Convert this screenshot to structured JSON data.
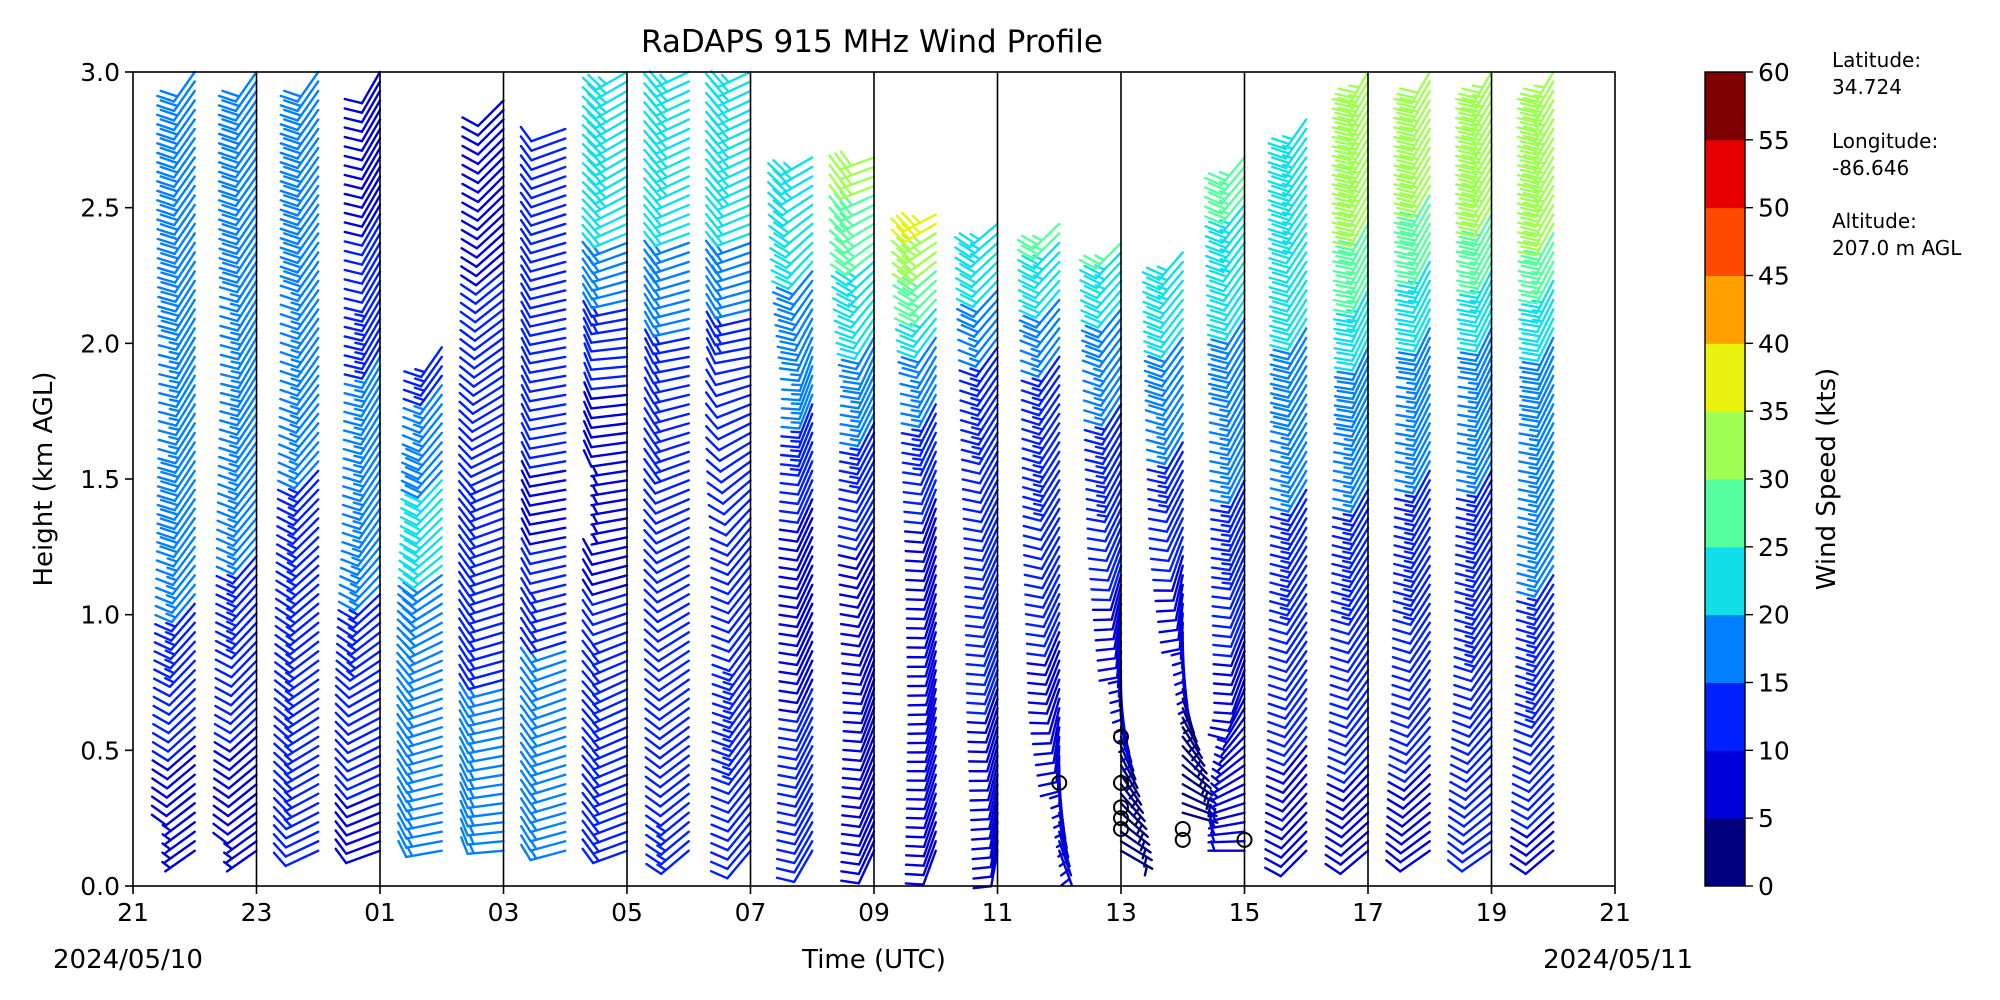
{
  "chart_data": {
    "type": "wind_barb_profile",
    "title": "RaDAPS 915 MHz Wind Profile",
    "xlabel": "Time (UTC)",
    "ylabel": "Height (km AGL)",
    "xlim": [
      21,
      45
    ],
    "ylim": [
      0,
      3.0
    ],
    "x_ticks": [
      21,
      23,
      25,
      27,
      29,
      31,
      33,
      35,
      37,
      39,
      41,
      43,
      45
    ],
    "x_tick_labels": [
      "21",
      "23",
      "01",
      "03",
      "05",
      "07",
      "09",
      "11",
      "13",
      "15",
      "17",
      "19",
      "21"
    ],
    "y_ticks": [
      0,
      0.5,
      1.0,
      1.5,
      2.0,
      2.5,
      3.0
    ],
    "y_tick_labels": [
      "0.0",
      "0.5",
      "1.0",
      "1.5",
      "2.0",
      "2.5",
      "3.0"
    ],
    "vertical_lines_at_hours": [
      23,
      25,
      27,
      29,
      31,
      33,
      35,
      37,
      39,
      41,
      43
    ],
    "date_left": "2024/05/10",
    "date_right": "2024/05/11",
    "colorbar": {
      "label": "Wind Speed (kts)",
      "ticks": [
        "0",
        "5",
        "10",
        "15",
        "20",
        "25",
        "30",
        "35",
        "40",
        "45",
        "50",
        "55",
        "60"
      ],
      "colors": [
        "#00007f",
        "#0000d9",
        "#0020ff",
        "#0080ff",
        "#10dfe8",
        "#55ff9f",
        "#9fff55",
        "#e8f20c",
        "#ffa000",
        "#ff4a00",
        "#e80000",
        "#7f0000"
      ]
    },
    "station": {
      "lat_label": "Latitude:",
      "lat": "34.724",
      "lon_label": "Longitude:",
      "lon": "-86.646",
      "alt_label": "Altitude:",
      "alt": "207.0 m AGL"
    },
    "profile_times": [
      22,
      23,
      24,
      25,
      26,
      27,
      28,
      29,
      30,
      31,
      32,
      33,
      34,
      35,
      36,
      37,
      38,
      39,
      40,
      41,
      42,
      43,
      44
    ],
    "profiles": [
      {
        "time": 22,
        "top": 3.0,
        "speeds": [
          6,
          12,
          18,
          17,
          19
        ],
        "dirs": [
          235,
          225,
          215,
          210,
          215
        ]
      },
      {
        "time": 23,
        "top": 3.0,
        "speeds": [
          7,
          11,
          16,
          17,
          18
        ],
        "dirs": [
          235,
          225,
          220,
          210,
          215
        ]
      },
      {
        "time": 24,
        "top": 3.0,
        "speeds": [
          12,
          15,
          14,
          17,
          18
        ],
        "dirs": [
          245,
          235,
          225,
          215,
          215
        ]
      },
      {
        "time": 25,
        "top": 3.0,
        "speeds": [
          9,
          12,
          17,
          15,
          9
        ],
        "dirs": [
          250,
          240,
          215,
          210,
          210
        ]
      },
      {
        "time": 26,
        "top": 2.0,
        "speeds": [
          16,
          16,
          22,
          14,
          18
        ],
        "dirs": [
          260,
          250,
          225,
          215,
          210
        ]
      },
      {
        "time": 27,
        "top": 2.9,
        "speeds": [
          17,
          15,
          13,
          11,
          9
        ],
        "dirs": [
          265,
          255,
          250,
          235,
          225
        ]
      },
      {
        "time": 28,
        "top": 2.8,
        "speeds": [
          16,
          17,
          9,
          12,
          10
        ],
        "dirs": [
          255,
          250,
          260,
          260,
          250
        ]
      },
      {
        "time": 29,
        "top": 3.0,
        "speeds": [
          14,
          15,
          6,
          11,
          24
        ],
        "dirs": [
          250,
          245,
          260,
          265,
          240
        ]
      },
      {
        "time": 30,
        "top": 3.0,
        "speeds": [
          13,
          11,
          12,
          14,
          23
        ],
        "dirs": [
          230,
          235,
          245,
          260,
          245
        ]
      },
      {
        "time": 31,
        "top": 3.0,
        "speeds": [
          12,
          13,
          11,
          12,
          24
        ],
        "dirs": [
          220,
          215,
          220,
          260,
          245
        ]
      },
      {
        "time": 32,
        "top": 2.7,
        "speeds": [
          10,
          10,
          9,
          17,
          23
        ],
        "dirs": [
          210,
          205,
          205,
          200,
          240
        ]
      },
      {
        "time": 33,
        "top": 2.7,
        "speeds": [
          9,
          8,
          10,
          18,
          31
        ],
        "dirs": [
          205,
          200,
          210,
          205,
          250
        ]
      },
      {
        "time": 34,
        "top": 2.5,
        "speeds": [
          8,
          8,
          9,
          17,
          42
        ],
        "dirs": [
          200,
          195,
          200,
          210,
          250
        ]
      },
      {
        "time": 35,
        "top": 2.45,
        "speeds": [
          8,
          10,
          11,
          14,
          28
        ],
        "dirs": [
          190,
          200,
          205,
          215,
          235
        ]
      },
      {
        "time": 36,
        "top": 2.45,
        "speeds": [
          6,
          9,
          12,
          15,
          30
        ],
        "dirs": [
          160,
          200,
          210,
          215,
          230
        ]
      },
      {
        "time": 37,
        "top": 2.4,
        "speeds": [
          3,
          6,
          12,
          16,
          30
        ],
        "dirs": [
          120,
          180,
          205,
          215,
          230
        ]
      },
      {
        "time": 38,
        "top": 2.35,
        "speeds": [
          2,
          5,
          11,
          19,
          28
        ],
        "dirs": [
          90,
          170,
          205,
          215,
          225
        ]
      },
      {
        "time": 39,
        "top": 2.7,
        "speeds": [
          5,
          8,
          14,
          18,
          26
        ],
        "dirs": [
          270,
          200,
          205,
          210,
          220
        ]
      },
      {
        "time": 40,
        "top": 2.85,
        "speeds": [
          8,
          11,
          14,
          19,
          24
        ],
        "dirs": [
          225,
          215,
          210,
          210,
          215
        ]
      },
      {
        "time": 41,
        "top": 3.0,
        "speeds": [
          9,
          11,
          14,
          19,
          33
        ],
        "dirs": [
          230,
          215,
          210,
          205,
          210
        ]
      },
      {
        "time": 42,
        "top": 3.0,
        "speeds": [
          9,
          11,
          14,
          17,
          31
        ],
        "dirs": [
          235,
          215,
          210,
          205,
          210
        ]
      },
      {
        "time": 43,
        "top": 3.0,
        "speeds": [
          10,
          12,
          14,
          17,
          33
        ],
        "dirs": [
          235,
          215,
          210,
          205,
          210
        ]
      },
      {
        "time": 44,
        "top": 3.0,
        "speeds": [
          9,
          13,
          16,
          18,
          34
        ],
        "dirs": [
          230,
          215,
          210,
          205,
          210
        ]
      }
    ],
    "profile_heights": [
      0.15,
      0.75,
      1.35,
      1.95,
      2.6
    ],
    "calm_marks": [
      {
        "time": 36,
        "height": 0.38
      },
      {
        "time": 37,
        "height": 0.55
      },
      {
        "time": 37,
        "height": 0.38
      },
      {
        "time": 37,
        "height": 0.29
      },
      {
        "time": 37,
        "height": 0.25
      },
      {
        "time": 37,
        "height": 0.21
      },
      {
        "time": 38,
        "height": 0.21
      },
      {
        "time": 38,
        "height": 0.17
      },
      {
        "time": 39,
        "height": 0.17
      }
    ]
  }
}
